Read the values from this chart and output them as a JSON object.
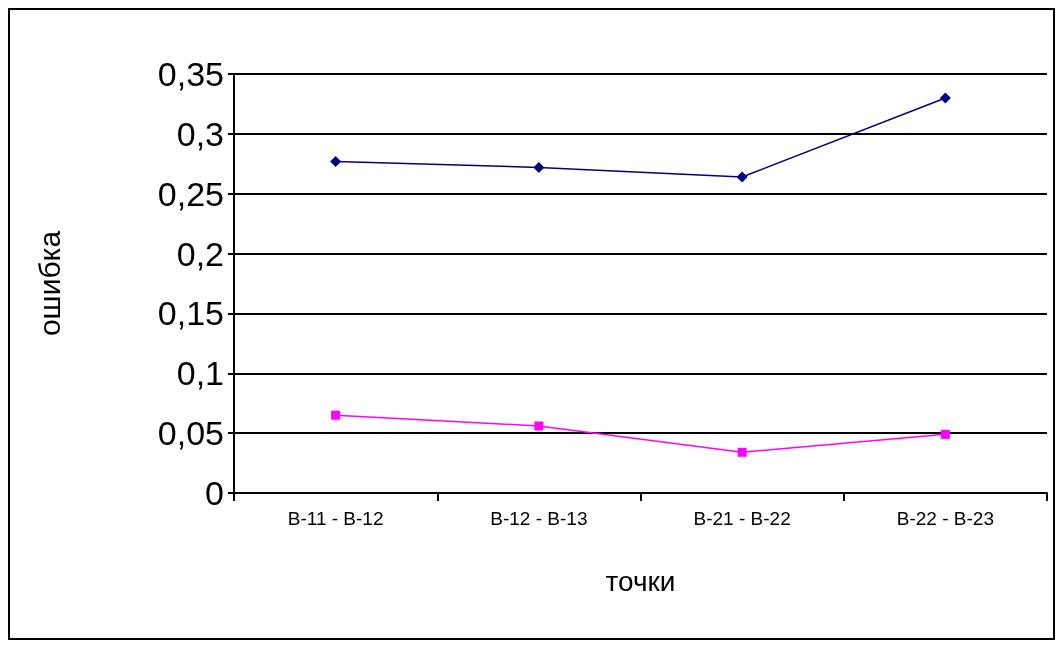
{
  "chart_data": {
    "type": "line",
    "xlabel": "точки",
    "ylabel": "ошибка",
    "categories": [
      "B-11 - B-12",
      "B-12 - B-13",
      "B-21 - B-22",
      "B-22 - B-23"
    ],
    "series": [
      {
        "color": "#000080",
        "marker": "diamond",
        "values": [
          0.277,
          0.272,
          0.264,
          0.33
        ]
      },
      {
        "color": "#ff00ff",
        "marker": "square",
        "values": [
          0.065,
          0.056,
          0.034,
          0.049
        ]
      }
    ],
    "ylim": [
      0,
      0.35
    ],
    "yticks": [
      {
        "value": 0,
        "label": "0"
      },
      {
        "value": 0.05,
        "label": "0,05"
      },
      {
        "value": 0.1,
        "label": "0,1"
      },
      {
        "value": 0.15,
        "label": "0,15"
      },
      {
        "value": 0.2,
        "label": "0,2"
      },
      {
        "value": 0.25,
        "label": "0,25"
      },
      {
        "value": 0.3,
        "label": "0,3"
      },
      {
        "value": 0.35,
        "label": "0,35"
      }
    ],
    "grid": "y"
  }
}
